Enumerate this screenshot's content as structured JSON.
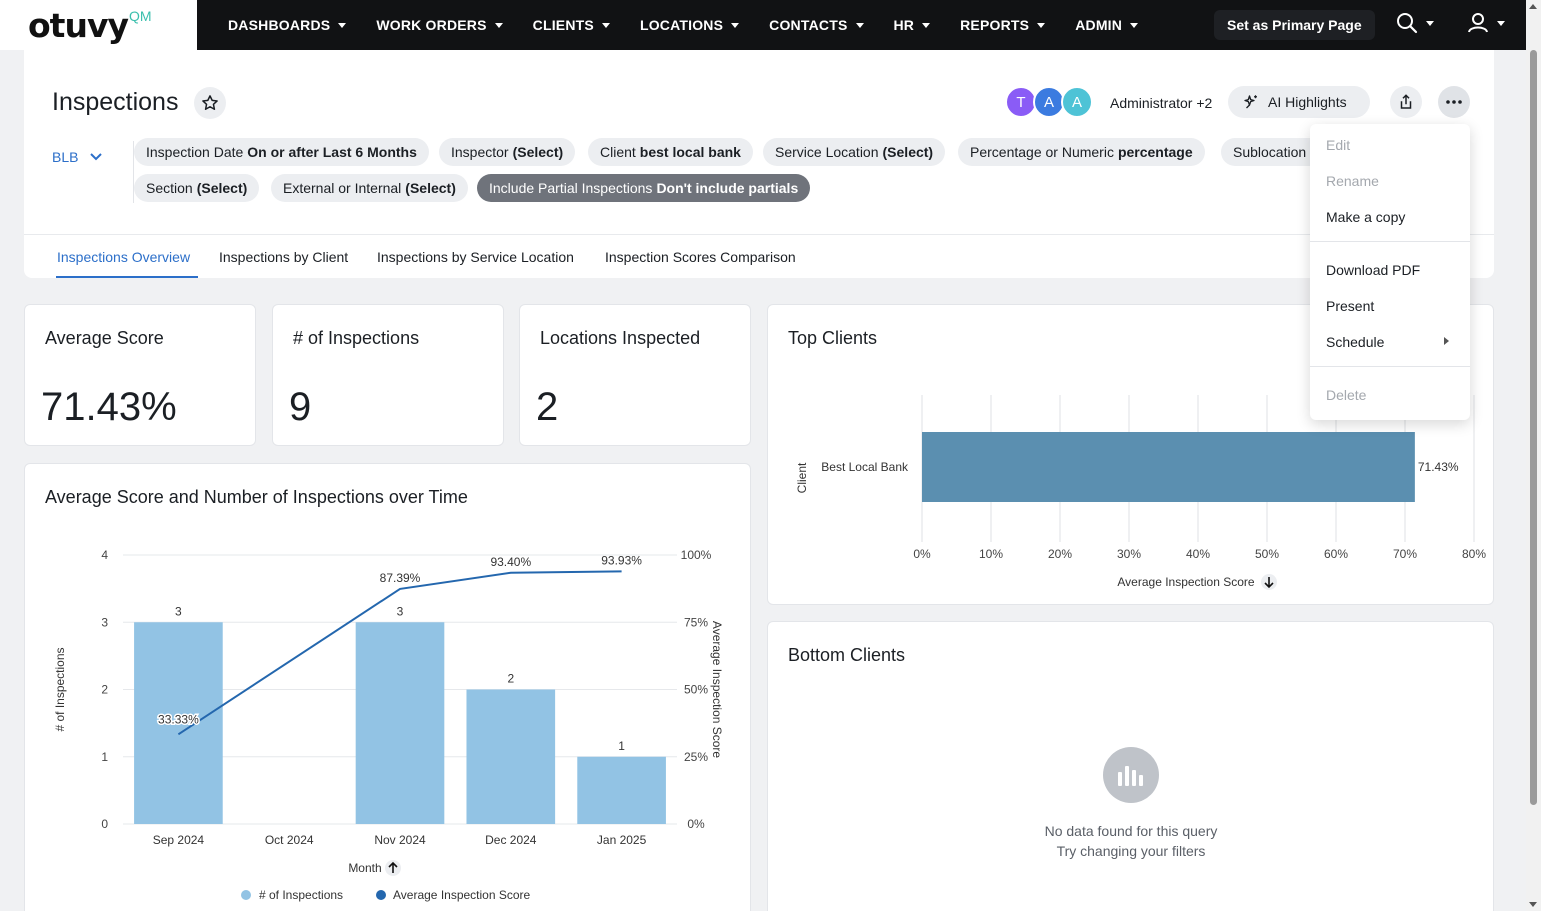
{
  "app": {
    "logo_text": "otuvy",
    "logo_sup": "QM",
    "nav": [
      {
        "label": "DASHBOARDS"
      },
      {
        "label": "WORK ORDERS"
      },
      {
        "label": "CLIENTS"
      },
      {
        "label": "LOCATIONS"
      },
      {
        "label": "CONTACTS"
      },
      {
        "label": "HR"
      },
      {
        "label": "REPORTS"
      },
      {
        "label": "ADMIN"
      }
    ],
    "primary_page_label": "Set as Primary Page"
  },
  "header": {
    "title": "Inspections",
    "avatars": [
      {
        "letter": "T",
        "color": "#8a5cf6"
      },
      {
        "letter": "A",
        "color": "#3b7be0"
      },
      {
        "letter": "A",
        "color": "#4ec3d6"
      }
    ],
    "owner_label": "Administrator +2",
    "ai_label": "AI Highlights",
    "group_selector": "BLB"
  },
  "filters": [
    {
      "name": "Inspection Date",
      "value": "On or after Last 6 Months"
    },
    {
      "name": "Inspector",
      "value": "(Select)"
    },
    {
      "name": "Client",
      "value": "best local bank"
    },
    {
      "name": "Service Location",
      "value": "(Select)"
    },
    {
      "name": "Percentage or Numeric",
      "value": "percentage"
    },
    {
      "name": "Sublocation",
      "value": ""
    },
    {
      "name": "Section",
      "value": "(Select)"
    },
    {
      "name": "External or Internal",
      "value": "(Select)"
    },
    {
      "name": "Include Partial Inspections",
      "value": "Don't include partials"
    }
  ],
  "tabs": [
    {
      "label": "Inspections Overview",
      "active": true
    },
    {
      "label": "Inspections by Client",
      "active": false
    },
    {
      "label": "Inspections by Service Location",
      "active": false
    },
    {
      "label": "Inspection Scores Comparison",
      "active": false
    }
  ],
  "kpis": [
    {
      "title": "Average Score",
      "value": "71.43%"
    },
    {
      "title": "# of Inspections",
      "value": "9"
    },
    {
      "title": "Locations Inspected",
      "value": "2"
    }
  ],
  "menu": {
    "items": [
      {
        "label": "Edit",
        "disabled": true
      },
      {
        "label": "Rename",
        "disabled": true
      },
      {
        "label": "Make a copy",
        "disabled": false
      },
      {
        "label": "Download PDF",
        "disabled": false
      },
      {
        "label": "Present",
        "disabled": false
      },
      {
        "label": "Schedule",
        "disabled": false
      },
      {
        "label": "Delete",
        "disabled": true
      }
    ]
  },
  "colors": {
    "bar_light": "#92c3e4",
    "bar_top_client": "#5b8fb0",
    "line": "#2467ae",
    "accent": "#2c6fc9"
  },
  "chart_data": [
    {
      "type": "bar",
      "title": "Average Score and Number of Inspections over Time",
      "categories": [
        "Sep 2024",
        "Oct 2024",
        "Nov 2024",
        "Dec 2024",
        "Jan 2025"
      ],
      "series": [
        {
          "name": "# of Inspections",
          "type": "bar",
          "axis": "left",
          "values": [
            3,
            0,
            3,
            2,
            1
          ],
          "labels": [
            "3",
            "",
            "3",
            "2",
            "1"
          ]
        },
        {
          "name": "Average Inspection Score",
          "type": "line",
          "axis": "right",
          "values": [
            33.33,
            null,
            87.39,
            93.4,
            93.93
          ],
          "labels": [
            "33.33%",
            "",
            "87.39%",
            "93.40%",
            "93.93%"
          ]
        }
      ],
      "xlabel": "Month",
      "ylabel": "# of Inspections",
      "y2label": "Average Inspection Score",
      "ylim": [
        0,
        4
      ],
      "y2lim": [
        0,
        100
      ],
      "yticks": [
        "0",
        "1",
        "2",
        "3",
        "4"
      ],
      "y2ticks": [
        "0%",
        "25%",
        "50%",
        "75%",
        "100%"
      ],
      "legend": "bottom",
      "grid": true
    },
    {
      "type": "bar",
      "orientation": "horizontal",
      "title": "Top Clients",
      "categories": [
        "Best Local Bank"
      ],
      "values": [
        71.43
      ],
      "value_labels": [
        "71.43%"
      ],
      "xlabel": "Average Inspection Score",
      "ylabel": "Client",
      "xlim": [
        0,
        80
      ],
      "xticks": [
        "0%",
        "10%",
        "20%",
        "30%",
        "40%",
        "50%",
        "60%",
        "70%",
        "80%"
      ],
      "grid": true
    },
    {
      "type": "bar",
      "title": "Bottom Clients",
      "categories": [],
      "values": [],
      "empty_message": "No data found for this query",
      "empty_hint": "Try changing your filters"
    }
  ]
}
